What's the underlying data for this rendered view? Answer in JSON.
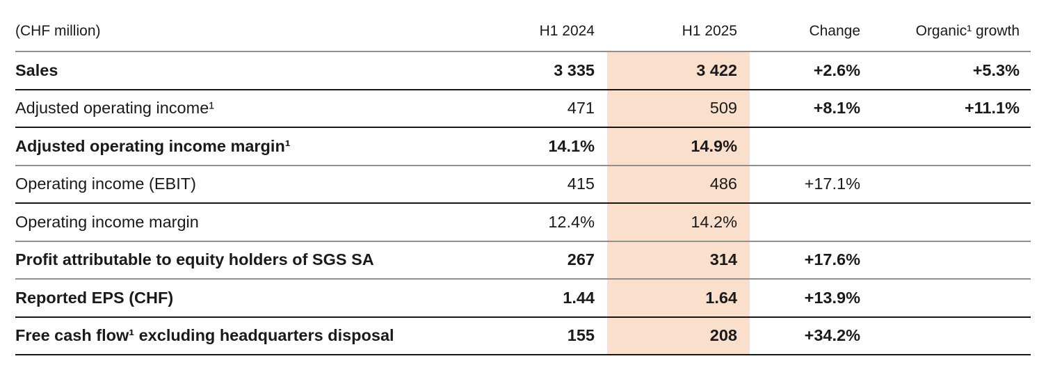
{
  "table": {
    "unit_label": "(CHF million)",
    "columns": [
      "H1 2024",
      "H1 2025",
      "Change",
      "Organic¹ growth"
    ],
    "colors": {
      "highlight": "#f9dfcc",
      "divider_dark": "#161616",
      "divider_light": "#8f8f8f",
      "text": "#1a1a1a",
      "background": "#ffffff"
    },
    "highlighted_column": "H1 2025",
    "rows": [
      {
        "label": {
          "text": "Sales",
          "bold": true
        },
        "values": [
          {
            "text": "3 335",
            "bold": true
          },
          {
            "text": "3 422",
            "bold": true
          },
          {
            "text": "+2.6%",
            "bold": true
          },
          {
            "text": "+5.3%",
            "bold": true
          }
        ],
        "divider": "dark"
      },
      {
        "label": {
          "text": "Adjusted operating income¹",
          "bold": false
        },
        "values": [
          {
            "text": "471",
            "bold": false
          },
          {
            "text": "509",
            "bold": false
          },
          {
            "text": "+8.1%",
            "bold": true
          },
          {
            "text": "+11.1%",
            "bold": true
          }
        ],
        "divider": "dark"
      },
      {
        "label": {
          "text": "Adjusted operating income margin¹",
          "bold": true
        },
        "values": [
          {
            "text": "14.1%",
            "bold": true
          },
          {
            "text": "14.9%",
            "bold": true
          },
          {
            "text": "",
            "bold": false
          },
          {
            "text": "",
            "bold": false
          }
        ],
        "divider": "light"
      },
      {
        "label": {
          "text": "Operating income (EBIT)",
          "bold": false
        },
        "values": [
          {
            "text": "415",
            "bold": false
          },
          {
            "text": "486",
            "bold": false
          },
          {
            "text": "+17.1%",
            "bold": false
          },
          {
            "text": "",
            "bold": false
          }
        ],
        "divider": "dark"
      },
      {
        "label": {
          "text": "Operating income margin",
          "bold": false
        },
        "values": [
          {
            "text": "12.4%",
            "bold": false
          },
          {
            "text": "14.2%",
            "bold": false
          },
          {
            "text": "",
            "bold": false
          },
          {
            "text": "",
            "bold": false
          }
        ],
        "divider": "light"
      },
      {
        "label": {
          "text": "Profit attributable to equity holders of SGS SA",
          "bold": true
        },
        "values": [
          {
            "text": "267",
            "bold": true
          },
          {
            "text": "314",
            "bold": true
          },
          {
            "text": "+17.6%",
            "bold": true
          },
          {
            "text": "",
            "bold": false
          }
        ],
        "divider": "light"
      },
      {
        "label": {
          "text": "Reported EPS (CHF)",
          "bold": true
        },
        "values": [
          {
            "text": "1.44",
            "bold": true
          },
          {
            "text": "1.64",
            "bold": true
          },
          {
            "text": "+13.9%",
            "bold": true
          },
          {
            "text": "",
            "bold": false
          }
        ],
        "divider": "dark"
      },
      {
        "label": {
          "text": "Free cash flow¹ excluding headquarters disposal",
          "bold": true
        },
        "values": [
          {
            "text": "155",
            "bold": true
          },
          {
            "text": "208",
            "bold": true
          },
          {
            "text": "+34.2%",
            "bold": true
          },
          {
            "text": "",
            "bold": false
          }
        ],
        "divider": "dark"
      }
    ]
  }
}
